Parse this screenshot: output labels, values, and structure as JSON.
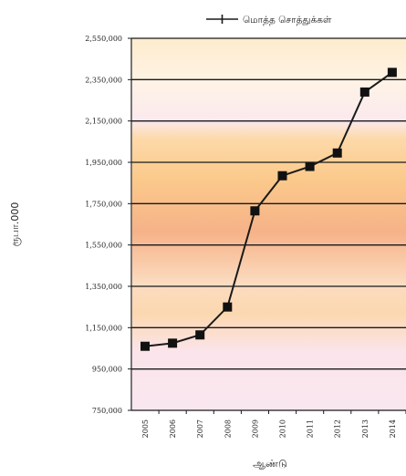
{
  "chart_data": {
    "type": "line",
    "title": "",
    "xlabel": "ஆண்டு",
    "ylabel": "ரூபா.000",
    "x": [
      "2005",
      "2006",
      "2007",
      "2008",
      "2009",
      "2010",
      "2011",
      "2012",
      "2013",
      "2014"
    ],
    "ylim": [
      750000,
      2550000
    ],
    "yticks": [
      "750,000",
      "950,000",
      "1,150,000",
      "1,350,000",
      "1,550,000",
      "1,750,000",
      "1,950,000",
      "2,150,000",
      "2,350,000",
      "2,550,000"
    ],
    "grid": true,
    "legend": "top",
    "series": [
      {
        "name": "மொத்த சொத்துக்கள்",
        "values": [
          1060000,
          1075000,
          1115000,
          1250000,
          1715000,
          1885000,
          1930000,
          1995000,
          2290000,
          2385000
        ]
      }
    ],
    "colors": {
      "line": "#1a1a1a",
      "marker": "#111111",
      "grid": "#1a1a1a"
    }
  }
}
